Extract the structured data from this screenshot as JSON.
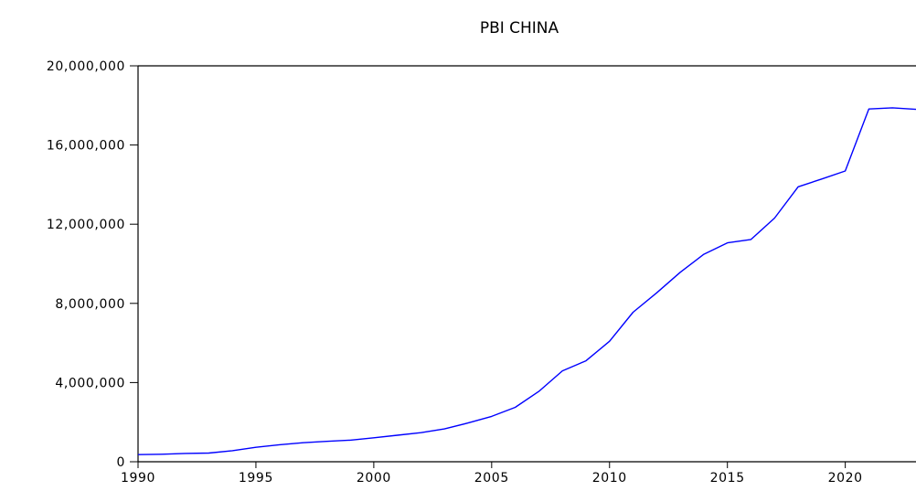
{
  "chart_data": {
    "type": "line",
    "title": "PBI CHINA",
    "xlabel": "",
    "ylabel": "",
    "xlim": [
      1990,
      2023
    ],
    "ylim": [
      0,
      20000000
    ],
    "x_ticks": [
      1990,
      1995,
      2000,
      2005,
      2010,
      2015,
      2020
    ],
    "x_tick_labels": [
      "1990",
      "1995",
      "2000",
      "2005",
      "2010",
      "2015",
      "2020"
    ],
    "y_ticks": [
      0,
      4000000,
      8000000,
      12000000,
      16000000,
      20000000
    ],
    "y_tick_labels": [
      "0",
      "4,000,000",
      "8,000,000",
      "12,000,000",
      "16,000,000",
      "20,000,000"
    ],
    "grid": false,
    "series": [
      {
        "color": "#0000ff",
        "x": [
          1990,
          1991,
          1992,
          1993,
          1994,
          1995,
          1996,
          1997,
          1998,
          1999,
          2000,
          2001,
          2002,
          2003,
          2004,
          2005,
          2006,
          2007,
          2008,
          2009,
          2010,
          2011,
          2012,
          2013,
          2014,
          2015,
          2016,
          2017,
          2018,
          2019,
          2020,
          2021,
          2022,
          2023
        ],
        "values": [
          360000,
          380000,
          420000,
          440000,
          560000,
          730000,
          860000,
          960000,
          1030000,
          1090000,
          1210000,
          1340000,
          1470000,
          1660000,
          1960000,
          2290000,
          2750000,
          3550000,
          4590000,
          5100000,
          6090000,
          7550000,
          8530000,
          9570000,
          10480000,
          11060000,
          11230000,
          12310000,
          13890000,
          14280000,
          14690000,
          17820000,
          17880000,
          17800000
        ]
      }
    ]
  }
}
